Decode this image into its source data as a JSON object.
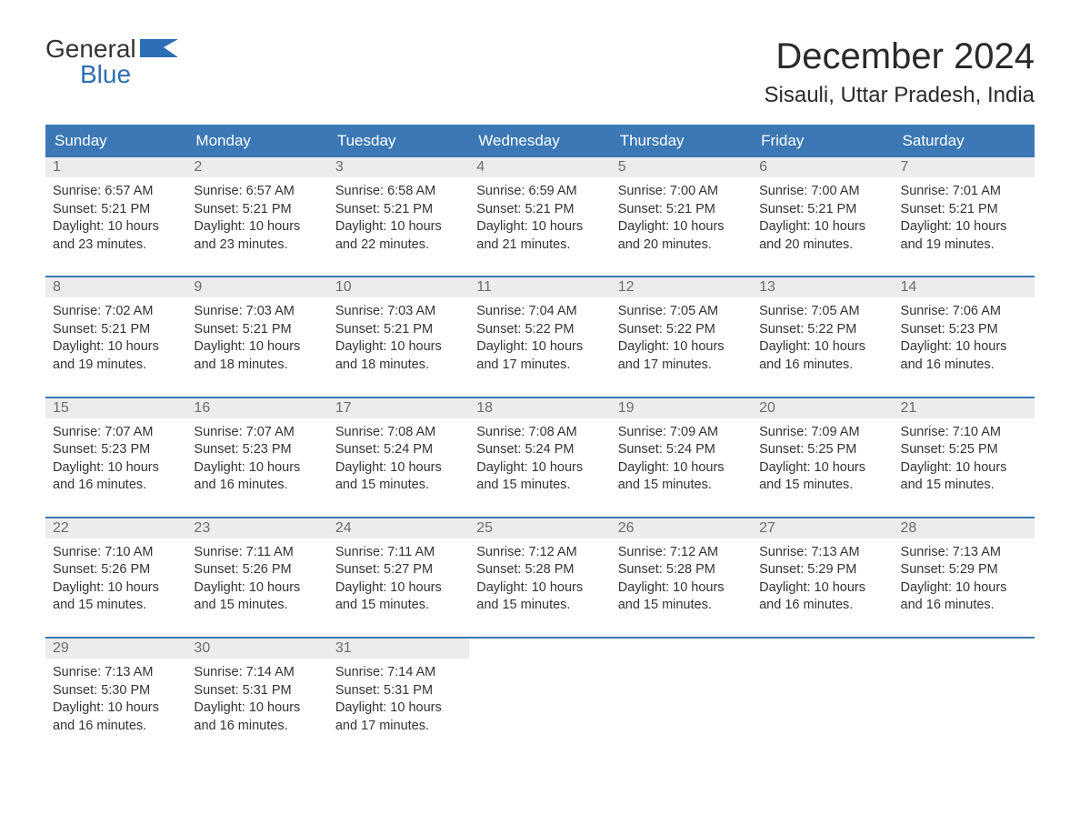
{
  "brand": {
    "word1": "General",
    "word2": "Blue",
    "logo_color": "#2d6fb4"
  },
  "title": "December 2024",
  "location": "Sisauli, Uttar Pradesh, India",
  "colors": {
    "header_bg": "#3b78b5",
    "header_text": "#ffffff",
    "daynum_bg": "#ececec",
    "daynum_text": "#6d6d6d",
    "border": "#3b78b5",
    "body_text": "#333333",
    "page_bg": "#ffffff"
  },
  "typography": {
    "title_fontsize": 40,
    "location_fontsize": 24,
    "dow_fontsize": 17,
    "daynum_fontsize": 16,
    "body_fontsize": 14.5
  },
  "dow": [
    "Sunday",
    "Monday",
    "Tuesday",
    "Wednesday",
    "Thursday",
    "Friday",
    "Saturday"
  ],
  "days": [
    {
      "n": 1,
      "sunrise": "6:57 AM",
      "sunset": "5:21 PM",
      "daylight": "10 hours and 23 minutes."
    },
    {
      "n": 2,
      "sunrise": "6:57 AM",
      "sunset": "5:21 PM",
      "daylight": "10 hours and 23 minutes."
    },
    {
      "n": 3,
      "sunrise": "6:58 AM",
      "sunset": "5:21 PM",
      "daylight": "10 hours and 22 minutes."
    },
    {
      "n": 4,
      "sunrise": "6:59 AM",
      "sunset": "5:21 PM",
      "daylight": "10 hours and 21 minutes."
    },
    {
      "n": 5,
      "sunrise": "7:00 AM",
      "sunset": "5:21 PM",
      "daylight": "10 hours and 20 minutes."
    },
    {
      "n": 6,
      "sunrise": "7:00 AM",
      "sunset": "5:21 PM",
      "daylight": "10 hours and 20 minutes."
    },
    {
      "n": 7,
      "sunrise": "7:01 AM",
      "sunset": "5:21 PM",
      "daylight": "10 hours and 19 minutes."
    },
    {
      "n": 8,
      "sunrise": "7:02 AM",
      "sunset": "5:21 PM",
      "daylight": "10 hours and 19 minutes."
    },
    {
      "n": 9,
      "sunrise": "7:03 AM",
      "sunset": "5:21 PM",
      "daylight": "10 hours and 18 minutes."
    },
    {
      "n": 10,
      "sunrise": "7:03 AM",
      "sunset": "5:21 PM",
      "daylight": "10 hours and 18 minutes."
    },
    {
      "n": 11,
      "sunrise": "7:04 AM",
      "sunset": "5:22 PM",
      "daylight": "10 hours and 17 minutes."
    },
    {
      "n": 12,
      "sunrise": "7:05 AM",
      "sunset": "5:22 PM",
      "daylight": "10 hours and 17 minutes."
    },
    {
      "n": 13,
      "sunrise": "7:05 AM",
      "sunset": "5:22 PM",
      "daylight": "10 hours and 16 minutes."
    },
    {
      "n": 14,
      "sunrise": "7:06 AM",
      "sunset": "5:23 PM",
      "daylight": "10 hours and 16 minutes."
    },
    {
      "n": 15,
      "sunrise": "7:07 AM",
      "sunset": "5:23 PM",
      "daylight": "10 hours and 16 minutes."
    },
    {
      "n": 16,
      "sunrise": "7:07 AM",
      "sunset": "5:23 PM",
      "daylight": "10 hours and 16 minutes."
    },
    {
      "n": 17,
      "sunrise": "7:08 AM",
      "sunset": "5:24 PM",
      "daylight": "10 hours and 15 minutes."
    },
    {
      "n": 18,
      "sunrise": "7:08 AM",
      "sunset": "5:24 PM",
      "daylight": "10 hours and 15 minutes."
    },
    {
      "n": 19,
      "sunrise": "7:09 AM",
      "sunset": "5:24 PM",
      "daylight": "10 hours and 15 minutes."
    },
    {
      "n": 20,
      "sunrise": "7:09 AM",
      "sunset": "5:25 PM",
      "daylight": "10 hours and 15 minutes."
    },
    {
      "n": 21,
      "sunrise": "7:10 AM",
      "sunset": "5:25 PM",
      "daylight": "10 hours and 15 minutes."
    },
    {
      "n": 22,
      "sunrise": "7:10 AM",
      "sunset": "5:26 PM",
      "daylight": "10 hours and 15 minutes."
    },
    {
      "n": 23,
      "sunrise": "7:11 AM",
      "sunset": "5:26 PM",
      "daylight": "10 hours and 15 minutes."
    },
    {
      "n": 24,
      "sunrise": "7:11 AM",
      "sunset": "5:27 PM",
      "daylight": "10 hours and 15 minutes."
    },
    {
      "n": 25,
      "sunrise": "7:12 AM",
      "sunset": "5:28 PM",
      "daylight": "10 hours and 15 minutes."
    },
    {
      "n": 26,
      "sunrise": "7:12 AM",
      "sunset": "5:28 PM",
      "daylight": "10 hours and 15 minutes."
    },
    {
      "n": 27,
      "sunrise": "7:13 AM",
      "sunset": "5:29 PM",
      "daylight": "10 hours and 16 minutes."
    },
    {
      "n": 28,
      "sunrise": "7:13 AM",
      "sunset": "5:29 PM",
      "daylight": "10 hours and 16 minutes."
    },
    {
      "n": 29,
      "sunrise": "7:13 AM",
      "sunset": "5:30 PM",
      "daylight": "10 hours and 16 minutes."
    },
    {
      "n": 30,
      "sunrise": "7:14 AM",
      "sunset": "5:31 PM",
      "daylight": "10 hours and 16 minutes."
    },
    {
      "n": 31,
      "sunrise": "7:14 AM",
      "sunset": "5:31 PM",
      "daylight": "10 hours and 17 minutes."
    }
  ],
  "labels": {
    "sunrise": "Sunrise:",
    "sunset": "Sunset:",
    "daylight": "Daylight:"
  },
  "start_dow": 0,
  "total_days": 31
}
